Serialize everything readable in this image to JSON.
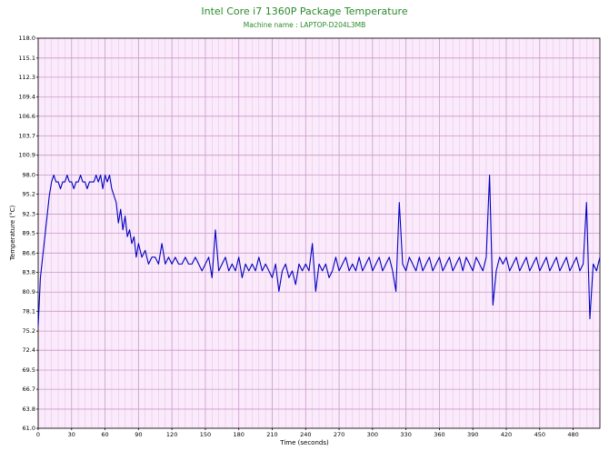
{
  "chart_data": {
    "type": "line",
    "title": "Intel Core i7 1360P Package Temperature",
    "subtitle": "Machine name : LAPTOP-D204L3MB",
    "x_label": "Time (seconds)",
    "y_label": "Temperature (°C)",
    "xlim": [
      0,
      504
    ],
    "xticks": [
      0,
      30,
      60,
      90,
      120,
      150,
      180,
      210,
      240,
      270,
      300,
      330,
      360,
      390,
      420,
      450,
      480
    ],
    "ylim": [
      61,
      118
    ],
    "yticks": [
      {
        "value": 61,
        "label": "61.0"
      },
      63.8,
      66.7,
      69.5,
      72.4,
      75.2,
      78.1,
      80.9,
      83.8,
      86.6,
      89.5,
      92.3,
      95.2,
      {
        "value": 98,
        "label": "98.0"
      },
      100.9,
      103.7,
      106.6,
      109.4,
      112.3,
      115.1,
      {
        "value": 118,
        "label": "118.0"
      }
    ],
    "grid": true,
    "x": [
      0,
      2,
      4,
      6,
      8,
      10,
      12,
      14,
      16,
      18,
      20,
      22,
      24,
      26,
      28,
      30,
      32,
      34,
      36,
      38,
      40,
      42,
      44,
      46,
      48,
      50,
      52,
      54,
      56,
      58,
      60,
      62,
      64,
      66,
      68,
      70,
      72,
      74,
      76,
      78,
      80,
      82,
      84,
      86,
      88,
      90,
      93,
      96,
      99,
      102,
      105,
      108,
      111,
      114,
      117,
      120,
      123,
      126,
      129,
      132,
      135,
      138,
      141,
      144,
      147,
      150,
      153,
      156,
      159,
      162,
      165,
      168,
      171,
      174,
      177,
      180,
      183,
      186,
      189,
      192,
      195,
      198,
      201,
      204,
      207,
      210,
      213,
      216,
      219,
      222,
      225,
      228,
      231,
      234,
      237,
      240,
      243,
      246,
      249,
      252,
      255,
      258,
      261,
      264,
      267,
      270,
      273,
      276,
      279,
      282,
      285,
      288,
      291,
      294,
      297,
      300,
      303,
      306,
      309,
      312,
      315,
      318,
      321,
      324,
      327,
      330,
      333,
      336,
      339,
      342,
      345,
      348,
      351,
      354,
      357,
      360,
      363,
      366,
      369,
      372,
      375,
      378,
      381,
      384,
      387,
      390,
      393,
      396,
      399,
      402,
      405,
      408,
      411,
      414,
      417,
      420,
      423,
      426,
      429,
      432,
      435,
      438,
      441,
      444,
      447,
      450,
      453,
      456,
      459,
      462,
      465,
      468,
      471,
      474,
      477,
      480,
      483,
      486,
      489,
      492,
      495,
      498,
      501,
      504
    ],
    "series": [
      {
        "color": "#0000c0",
        "values": [
          76,
          83,
          86,
          89,
          92,
          95,
          97,
          98,
          97,
          97,
          96,
          97,
          97,
          98,
          97,
          97,
          96,
          97,
          97,
          98,
          97,
          97,
          96,
          97,
          97,
          97,
          98,
          97,
          98,
          96,
          98,
          97,
          98,
          96,
          95,
          94,
          91,
          93,
          90,
          92,
          89,
          90,
          88,
          89,
          86,
          88,
          86,
          87,
          85,
          86,
          86,
          85,
          88,
          85,
          86,
          85,
          86,
          85,
          85,
          86,
          85,
          85,
          86,
          85,
          84,
          85,
          86,
          83,
          90,
          84,
          85,
          86,
          84,
          85,
          84,
          86,
          83,
          85,
          84,
          85,
          84,
          86,
          84,
          85,
          84,
          83,
          85,
          81,
          84,
          85,
          83,
          84,
          82,
          85,
          84,
          85,
          84,
          88,
          81,
          85,
          84,
          85,
          83,
          84,
          86,
          84,
          85,
          86,
          84,
          85,
          84,
          86,
          84,
          85,
          86,
          84,
          85,
          86,
          84,
          85,
          86,
          84,
          81,
          94,
          85,
          84,
          86,
          85,
          84,
          86,
          84,
          85,
          86,
          84,
          85,
          86,
          84,
          85,
          86,
          84,
          85,
          86,
          84,
          86,
          85,
          84,
          86,
          85,
          84,
          86,
          98,
          79,
          84,
          86,
          85,
          86,
          84,
          85,
          86,
          84,
          85,
          86,
          84,
          85,
          86,
          84,
          85,
          86,
          84,
          85,
          86,
          84,
          85,
          86,
          84,
          85,
          86,
          84,
          85,
          94,
          77,
          85,
          84,
          86
        ]
      }
    ]
  }
}
